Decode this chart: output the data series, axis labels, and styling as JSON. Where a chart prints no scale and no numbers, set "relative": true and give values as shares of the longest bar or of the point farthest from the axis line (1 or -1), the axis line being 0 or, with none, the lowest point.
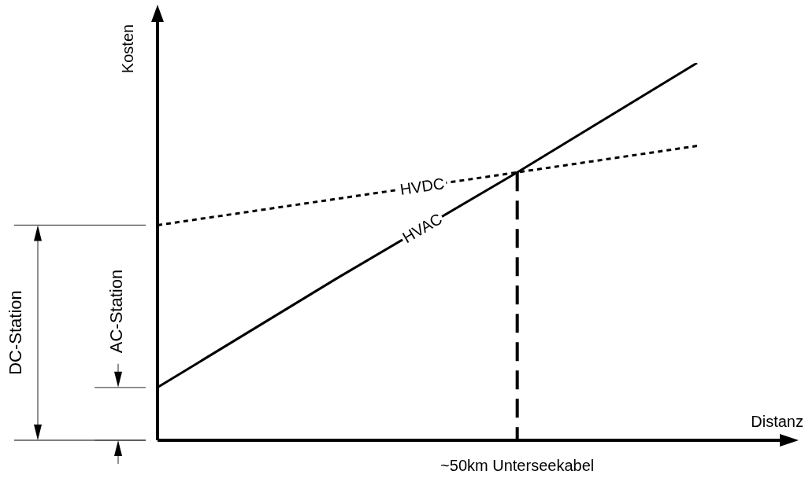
{
  "chart_data": {
    "type": "line",
    "relative": true,
    "xlabel": "Distanz",
    "ylabel": "Kosten",
    "categories": [
      null,
      null,
      null,
      null
    ],
    "marker": "none",
    "series": [
      {
        "name": "HVDC",
        "color": "#000000",
        "line_style": "dotted",
        "values": [
          0.57,
          0.64,
          0.71,
          0.78
        ]
      },
      {
        "name": "HVAC",
        "color": "#000000",
        "line_style": "solid",
        "values": [
          0.14,
          0.43,
          0.71,
          1
        ]
      }
    ],
    "annotations": [
      "DC-Station",
      "AC-Station",
      "~50km Unterseekabel"
    ]
  }
}
